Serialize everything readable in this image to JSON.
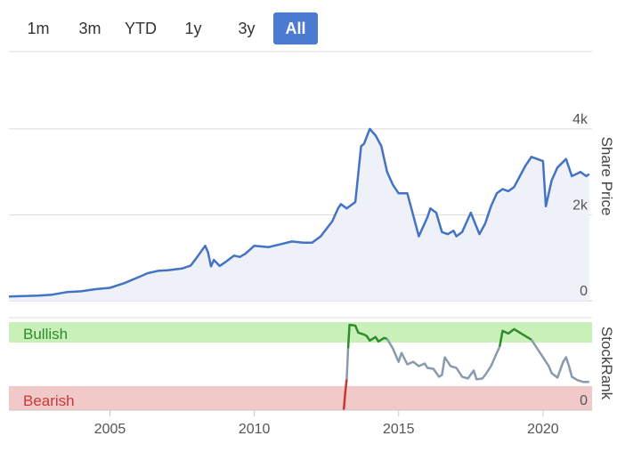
{
  "range_selector": {
    "buttons": [
      "1m",
      "3m",
      "YTD",
      "1y",
      "3y",
      "All"
    ],
    "active": "All",
    "active_color": "#4a7bd0"
  },
  "chart_data": [
    {
      "type": "area",
      "ylabel": "Share Price",
      "ylim": [
        0,
        5800
      ],
      "ytick_labels": [
        "4k",
        "2k",
        "0"
      ],
      "yticks": [
        4000,
        2000,
        0
      ],
      "grid": true,
      "line_color": "#4472c4",
      "fill_color": "#eef2f8",
      "series": [
        {
          "x": [
            2001.5,
            2002.0,
            2002.5,
            2003.0,
            2003.5,
            2004.0,
            2004.5,
            2005.0,
            2005.5,
            2006.0,
            2006.3,
            2006.7,
            2007.0,
            2007.5,
            2007.8,
            2008.0,
            2008.3,
            2008.4,
            2008.5,
            2008.6,
            2008.8,
            2009.0,
            2009.3,
            2009.5,
            2009.7,
            2010.0,
            2010.5,
            2011.0,
            2011.3,
            2011.7,
            2012.0,
            2012.3,
            2012.7,
            2012.9,
            2013.0,
            2013.2,
            2013.5,
            2013.7,
            2013.8,
            2014.0,
            2014.2,
            2014.4,
            2014.6,
            2014.8,
            2015.0,
            2015.3,
            2015.5,
            2015.7,
            2016.0,
            2016.1,
            2016.3,
            2016.5,
            2016.7,
            2016.9,
            2017.0,
            2017.2,
            2017.5,
            2017.8,
            2018.0,
            2018.2,
            2018.4,
            2018.6,
            2018.8,
            2019.0,
            2019.2,
            2019.4,
            2019.6,
            2019.8,
            2020.0,
            2020.1,
            2020.3,
            2020.5,
            2020.8,
            2021.0,
            2021.3,
            2021.5,
            2021.6
          ],
          "y": [
            100,
            110,
            120,
            140,
            200,
            220,
            270,
            300,
            410,
            550,
            640,
            700,
            710,
            750,
            820,
            1000,
            1280,
            1120,
            800,
            950,
            810,
            900,
            1050,
            1020,
            1100,
            1280,
            1250,
            1330,
            1380,
            1350,
            1350,
            1500,
            1850,
            2150,
            2250,
            2150,
            2300,
            3600,
            3650,
            4000,
            3850,
            3600,
            3000,
            2700,
            2500,
            2500,
            2000,
            1500,
            1950,
            2150,
            2050,
            1600,
            1550,
            1630,
            1500,
            1600,
            2050,
            1550,
            1800,
            2200,
            2500,
            2600,
            2550,
            2650,
            2900,
            3150,
            3350,
            3300,
            3250,
            2200,
            2800,
            3100,
            3300,
            2900,
            3000,
            2900,
            2950
          ]
        }
      ]
    },
    {
      "type": "line",
      "ylabel": "StockRank",
      "ytick_labels": [
        "0"
      ],
      "yticks": [
        0
      ],
      "ylim": [
        0,
        100
      ],
      "zones": [
        {
          "label": "Bullish",
          "from": 80,
          "to": 100,
          "color": "#c9f0b8",
          "text_color": "#2e8b2e"
        },
        {
          "label": "Bearish",
          "from": 0,
          "to": 20,
          "color": "#f2c9c9",
          "text_color": "#c83a3a"
        }
      ],
      "xlabel": "",
      "xtick_labels": [
        "2005",
        "2010",
        "2015",
        "2020"
      ],
      "xticks": [
        2005,
        2010,
        2015,
        2020
      ],
      "xlim": [
        2001.5,
        2021.7
      ],
      "segments": [
        {
          "color": "#cc3333",
          "x": [
            2013.1,
            2013.15,
            2013.2
          ],
          "y": [
            0,
            20,
            35
          ]
        },
        {
          "color": "#8a99ad",
          "x": [
            2013.2,
            2013.25
          ],
          "y": [
            35,
            70
          ]
        },
        {
          "color": "#2e8b2e",
          "x": [
            2013.25,
            2013.3,
            2013.5,
            2013.6,
            2013.8,
            2013.9,
            2014.0,
            2014.2,
            2014.3,
            2014.5,
            2014.6
          ],
          "y": [
            70,
            97,
            96,
            88,
            86,
            84,
            79,
            83,
            78,
            82,
            81
          ]
        },
        {
          "color": "#8a99ad",
          "x": [
            2014.6,
            2014.8,
            2015.0,
            2015.1,
            2015.3,
            2015.5,
            2015.7,
            2015.9,
            2016.0,
            2016.2,
            2016.4,
            2016.5,
            2016.6,
            2016.8,
            2017.0,
            2017.2,
            2017.4,
            2017.6,
            2017.7,
            2017.9,
            2018.0,
            2018.2,
            2018.4,
            2018.5
          ],
          "y": [
            81,
            70,
            55,
            65,
            52,
            55,
            50,
            53,
            48,
            47,
            38,
            40,
            60,
            50,
            48,
            38,
            36,
            45,
            35,
            36,
            40,
            50,
            65,
            72
          ]
        },
        {
          "color": "#2e8b2e",
          "x": [
            2018.5,
            2018.6,
            2018.8,
            2019.0,
            2019.2,
            2019.4,
            2019.6
          ],
          "y": [
            72,
            90,
            87,
            92,
            88,
            84,
            80
          ]
        },
        {
          "color": "#8a99ad",
          "x": [
            2019.6,
            2019.8,
            2020.0,
            2020.2,
            2020.3,
            2020.5,
            2020.7,
            2020.8,
            2020.9,
            2021.0,
            2021.2,
            2021.4,
            2021.6
          ],
          "y": [
            80,
            70,
            60,
            50,
            42,
            37,
            55,
            60,
            50,
            38,
            34,
            32,
            32
          ]
        }
      ]
    }
  ]
}
